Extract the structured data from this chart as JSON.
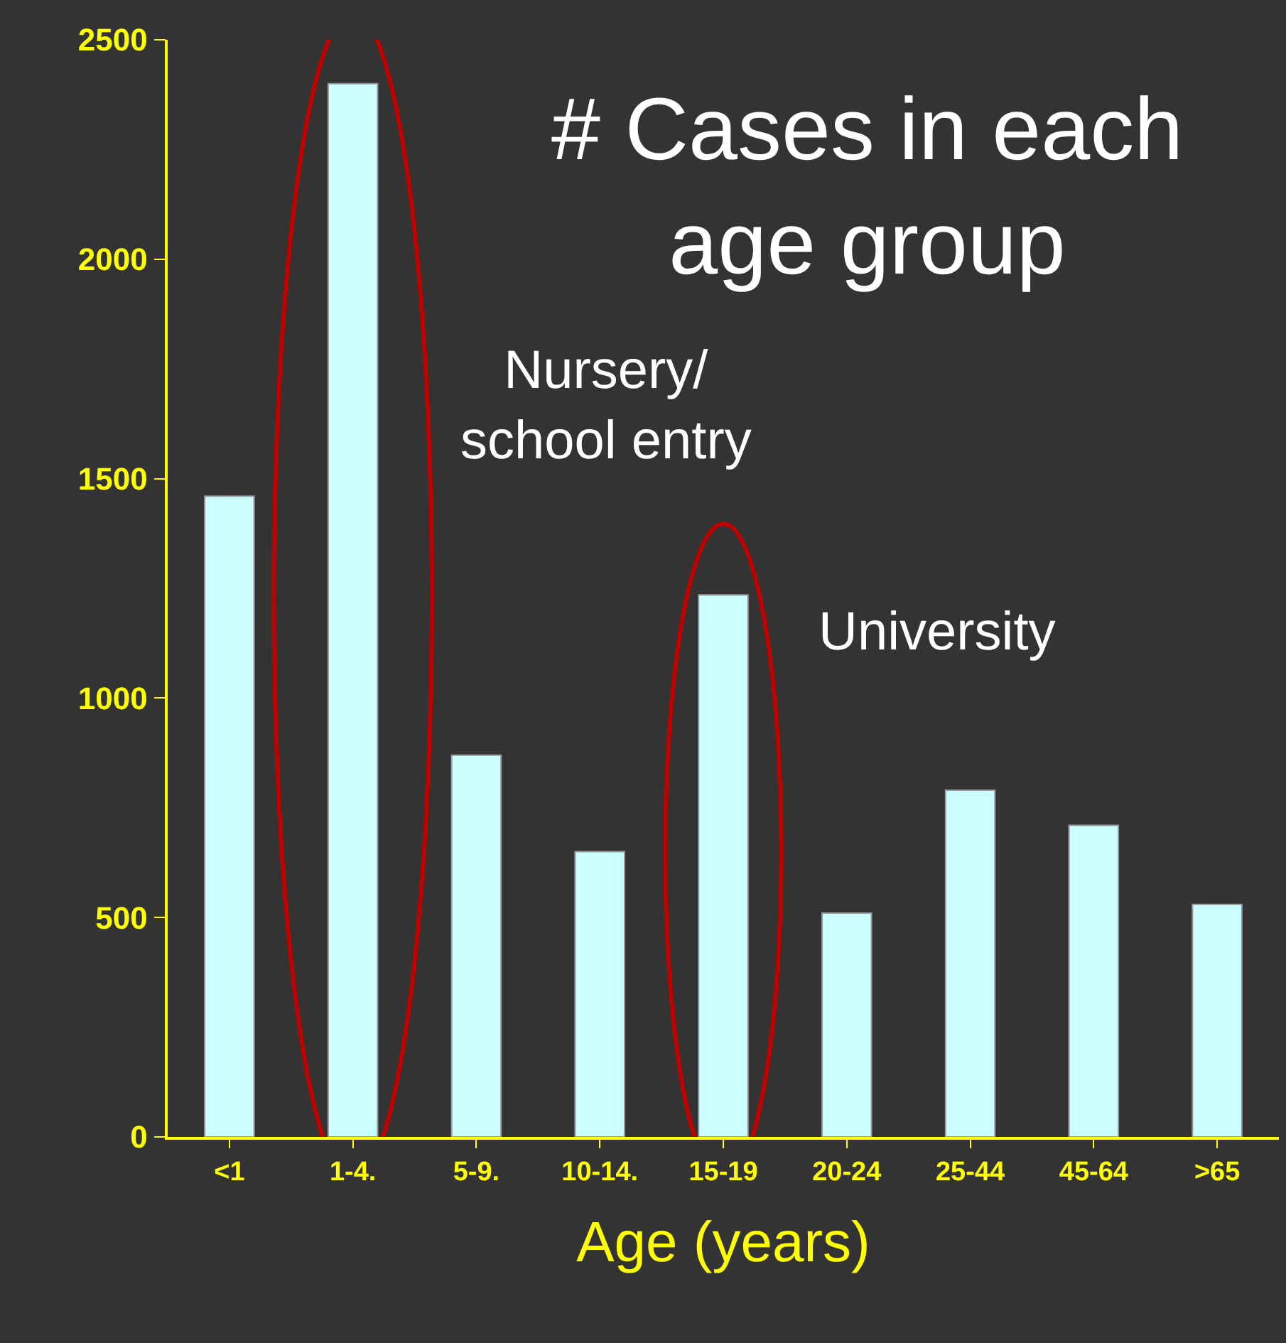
{
  "chart_data": {
    "type": "bar",
    "title": "# Cases in each\nage group",
    "xlabel": "Age (years)",
    "categories": [
      "<1",
      "1-4.",
      "5-9.",
      "10-14.",
      "15-19",
      "20-24",
      "25-44",
      "45-64",
      ">65"
    ],
    "values": [
      1460,
      2400,
      870,
      650,
      1235,
      510,
      790,
      710,
      530
    ],
    "color": "#ccffff",
    "ylim": [
      0,
      2500
    ],
    "yticks": [
      0,
      500,
      1000,
      1500,
      2000,
      2500
    ],
    "grid": false,
    "annotations": [
      "Nursery/\nschool entry",
      "University"
    ]
  }
}
